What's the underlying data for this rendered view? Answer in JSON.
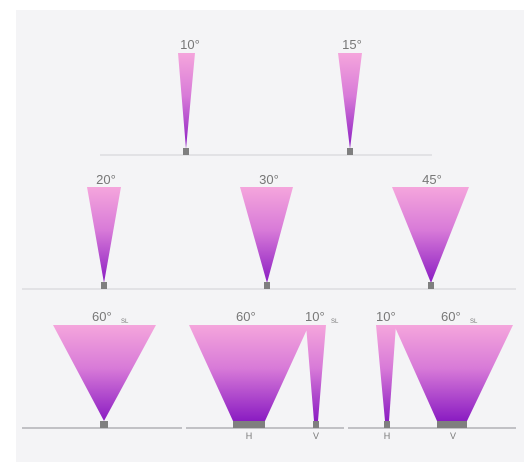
{
  "colors": {
    "panel": "#f4f4f6",
    "beam_top": "#f5a6dc",
    "beam_bottom": "#8a1cc2",
    "base": "#7f7f7f",
    "line": "#c9c9cd",
    "text": "#777777"
  },
  "labels": {
    "a10": "10°",
    "a15": "15°",
    "a20": "20°",
    "a30": "30°",
    "a45": "45°",
    "a60_sl": "60°",
    "sl_1": "SL",
    "a60_h": "60°",
    "a10_v": "10°",
    "sl_2": "SL",
    "h1": "H",
    "v1": "V",
    "a10_left": "10°",
    "a60_right": "60°",
    "sl_3": "SL",
    "h2": "H",
    "v2": "V"
  }
}
